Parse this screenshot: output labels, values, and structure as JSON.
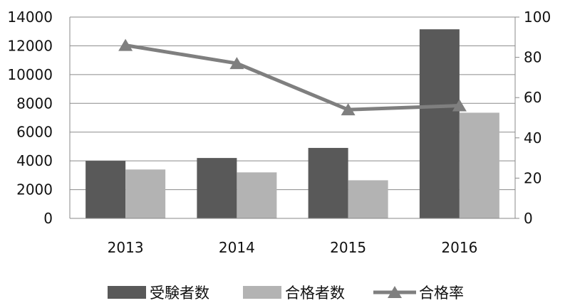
{
  "chart_data": {
    "type": "bar",
    "categories": [
      "2013",
      "2014",
      "2015",
      "2016"
    ],
    "series": [
      {
        "name": "受験者数",
        "kind": "bar",
        "axis": "left",
        "color": "#595959",
        "values": [
          4000,
          4200,
          4900,
          13150
        ]
      },
      {
        "name": "合格者数",
        "kind": "bar",
        "axis": "left",
        "color": "#b3b3b3",
        "values": [
          3400,
          3200,
          2650,
          7350
        ]
      },
      {
        "name": "合格率",
        "kind": "line",
        "axis": "right",
        "color": "#7f7f7f",
        "marker": "triangle",
        "values": [
          86,
          77,
          54,
          56
        ]
      }
    ],
    "y_left": {
      "range": [
        0,
        14000
      ],
      "ticks": [
        "0",
        "2000",
        "4000",
        "6000",
        "8000",
        "10000",
        "12000",
        "14000"
      ]
    },
    "y_right": {
      "range": [
        0,
        100
      ],
      "ticks": [
        "0",
        "20",
        "40",
        "60",
        "80",
        "100"
      ]
    },
    "grid": true,
    "legend": "bottom"
  }
}
